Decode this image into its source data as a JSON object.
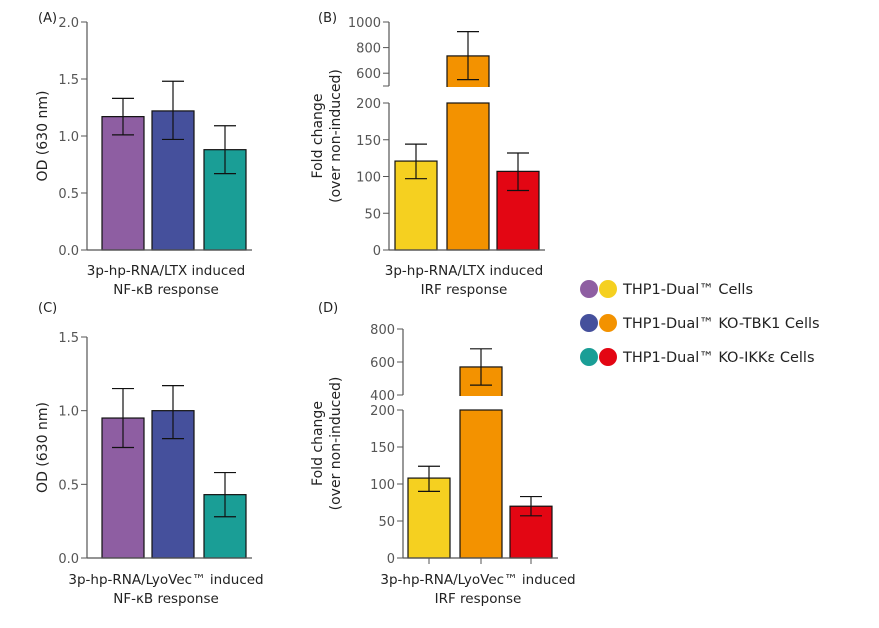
{
  "colors": {
    "purple": "#8e5ea2",
    "blue": "#45509c",
    "teal": "#1a9e96",
    "yellow": "#f5d020",
    "orange": "#f39200",
    "red": "#e30613"
  },
  "legend": [
    {
      "label": "THP1-Dual™ Cells",
      "colors": [
        "#8e5ea2",
        "#f5d020"
      ]
    },
    {
      "label": "THP1-Dual™ KO-TBK1 Cells",
      "colors": [
        "#45509c",
        "#f39200"
      ]
    },
    {
      "label": "THP1-Dual™ KO-IKKε Cells",
      "colors": [
        "#1a9e96",
        "#e30613"
      ]
    }
  ],
  "chart_data": [
    {
      "panel": "(A)",
      "type": "bar",
      "ylabel": "OD (630 nm)",
      "xlabel": [
        "3p-hp-RNA/LTX induced",
        "NF-κB response"
      ],
      "ylim": [
        0,
        2.0
      ],
      "ticks": [
        "0.0",
        "0.5",
        "1.0",
        "1.5",
        "2.0"
      ],
      "tick_values": [
        0,
        0.5,
        1.0,
        1.5,
        2.0
      ],
      "series": [
        {
          "name": "THP1-Dual™ Cells",
          "value": 1.17,
          "err": [
            1.01,
            1.33
          ],
          "color": "#8e5ea2"
        },
        {
          "name": "THP1-Dual™ KO-TBK1 Cells",
          "value": 1.22,
          "err": [
            0.97,
            1.48
          ],
          "color": "#45509c"
        },
        {
          "name": "THP1-Dual™ KO-IKKε Cells",
          "value": 0.88,
          "err": [
            0.67,
            1.09
          ],
          "color": "#1a9e96"
        }
      ]
    },
    {
      "panel": "(B)",
      "type": "bar",
      "ylabel": [
        "Fold change",
        "(over non-induced)"
      ],
      "xlabel": [
        "3p-hp-RNA/LTX induced",
        "IRF response"
      ],
      "ylim_lower": [
        0,
        200
      ],
      "ylim_upper": [
        500,
        1000
      ],
      "ticks_lower": [
        "0",
        "50",
        "100",
        "150",
        "200"
      ],
      "tick_values_lower": [
        0,
        50,
        100,
        150,
        200
      ],
      "ticks_upper": [
        "600",
        "800",
        "1000"
      ],
      "tick_values_upper": [
        600,
        800,
        1000
      ],
      "series": [
        {
          "name": "THP1-Dual™ Cells",
          "value": 121,
          "err": [
            97,
            144
          ],
          "color": "#f5d020"
        },
        {
          "name": "THP1-Dual™ KO-TBK1 Cells",
          "value": 735,
          "err": [
            550,
            925
          ],
          "color": "#f39200"
        },
        {
          "name": "THP1-Dual™ KO-IKKε Cells",
          "value": 107,
          "err": [
            81,
            132
          ],
          "color": "#e30613"
        }
      ]
    },
    {
      "panel": "(C)",
      "type": "bar",
      "ylabel": "OD (630 nm)",
      "xlabel": [
        "3p-hp-RNA/LyoVec™ induced",
        "NF-κB response"
      ],
      "ylim": [
        0,
        1.5
      ],
      "ticks": [
        "0.0",
        "0.5",
        "1.0",
        "1.5"
      ],
      "tick_values": [
        0,
        0.5,
        1.0,
        1.5
      ],
      "series": [
        {
          "name": "THP1-Dual™ Cells",
          "value": 0.95,
          "err": [
            0.75,
            1.15
          ],
          "color": "#8e5ea2"
        },
        {
          "name": "THP1-Dual™ KO-TBK1 Cells",
          "value": 1.0,
          "err": [
            0.81,
            1.17
          ],
          "color": "#45509c"
        },
        {
          "name": "THP1-Dual™ KO-IKKε Cells",
          "value": 0.43,
          "err": [
            0.28,
            0.58
          ],
          "color": "#1a9e96"
        }
      ]
    },
    {
      "panel": "(D)",
      "type": "bar",
      "ylabel": [
        "Fold change",
        "(over non-induced)"
      ],
      "xlabel": [
        "3p-hp-RNA/LyoVec™ induced",
        "IRF response"
      ],
      "ylim_lower": [
        0,
        200
      ],
      "ylim_upper": [
        400,
        800
      ],
      "ticks_lower": [
        "0",
        "50",
        "100",
        "150",
        "200"
      ],
      "tick_values_lower": [
        0,
        50,
        100,
        150,
        200
      ],
      "ticks_upper": [
        "400",
        "600",
        "800"
      ],
      "tick_values_upper": [
        400,
        600,
        800
      ],
      "series": [
        {
          "name": "THP1-Dual™ Cells",
          "value": 108,
          "err": [
            90,
            124
          ],
          "color": "#f5d020"
        },
        {
          "name": "THP1-Dual™ KO-TBK1 Cells",
          "value": 570,
          "err": [
            460,
            680
          ],
          "color": "#f39200"
        },
        {
          "name": "THP1-Dual™ KO-IKKε Cells",
          "value": 70,
          "err": [
            57,
            83
          ],
          "color": "#e30613"
        }
      ]
    }
  ]
}
